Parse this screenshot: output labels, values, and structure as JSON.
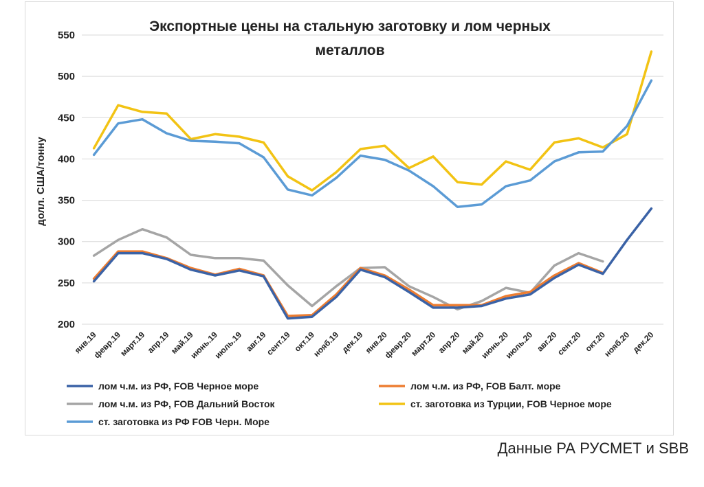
{
  "source_note": "Данные РА РУСМЕТ и SBB",
  "chart_data": {
    "type": "line",
    "title_lines": [
      "Экспортные цены на стальную заготовку и лом черных",
      "металлов"
    ],
    "xlabel": "",
    "ylabel": "долл. США/тонну",
    "ylim": [
      200,
      550
    ],
    "yticks": [
      200,
      250,
      300,
      350,
      400,
      450,
      500,
      550
    ],
    "grid": true,
    "legend_position": "bottom",
    "categories": [
      "янв.19",
      "февр.19",
      "март.19",
      "апр.19",
      "май.19",
      "июнь.19",
      "июль.19",
      "авг.19",
      "сент.19",
      "окт.19",
      "нояб.19",
      "дек.19",
      "янв.20",
      "февр.20",
      "март.20",
      "апр.20",
      "май.20",
      "июнь.20",
      "июль.20",
      "авг.20",
      "сент.20",
      "окт.20",
      "нояб.20",
      "дек.20"
    ],
    "series": [
      {
        "name": "лом ч.м. из РФ, FOB Черное море",
        "color": "#3a62a6",
        "values": [
          252,
          286,
          286,
          279,
          266,
          259,
          265,
          258,
          207,
          209,
          233,
          266,
          257,
          239,
          220,
          220,
          222,
          231,
          236,
          256,
          272,
          261,
          302,
          340
        ]
      },
      {
        "name": "лом ч.м. из РФ, FOB Балт. море",
        "color": "#ed7d31",
        "values": [
          255,
          288,
          288,
          280,
          268,
          260,
          267,
          259,
          210,
          211,
          236,
          268,
          259,
          242,
          223,
          223,
          223,
          234,
          239,
          259,
          274,
          262,
          null,
          null
        ]
      },
      {
        "name": "лом ч.м. из РФ, FOB Дальний Восток",
        "color": "#a5a5a5",
        "values": [
          283,
          302,
          315,
          305,
          284,
          280,
          280,
          277,
          247,
          222,
          246,
          268,
          269,
          246,
          233,
          218,
          228,
          244,
          238,
          271,
          286,
          276,
          null,
          null
        ]
      },
      {
        "name": "ст. заготовка из Турции, FOB Черное море",
        "color": "#f2c314",
        "values": [
          413,
          465,
          457,
          455,
          424,
          430,
          427,
          420,
          379,
          362,
          384,
          412,
          416,
          389,
          403,
          372,
          369,
          397,
          387,
          420,
          425,
          414,
          430,
          530
        ]
      },
      {
        "name": "ст. заготовка из РФ FOB Черн. Море",
        "color": "#5b9bd5",
        "values": [
          405,
          443,
          448,
          431,
          422,
          421,
          419,
          402,
          363,
          356,
          377,
          404,
          399,
          386,
          367,
          342,
          345,
          367,
          374,
          397,
          408,
          409,
          440,
          495
        ]
      }
    ]
  }
}
